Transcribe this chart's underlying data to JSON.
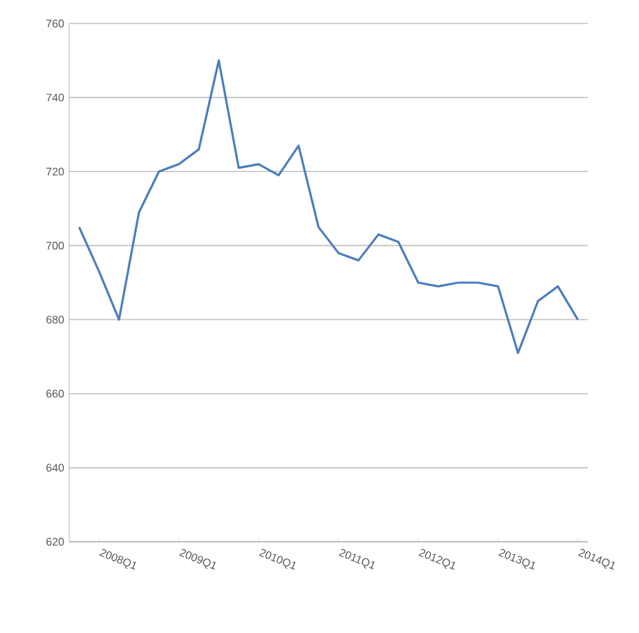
{
  "chart_data": {
    "type": "line",
    "categories": [
      null,
      "2008Q1",
      null,
      null,
      null,
      "2009Q1",
      null,
      null,
      null,
      "2010Q1",
      null,
      null,
      null,
      "2011Q1",
      null,
      null,
      null,
      "2012Q1",
      null,
      null,
      null,
      "2013Q1",
      null,
      null,
      null,
      "2014Q1"
    ],
    "series": [
      {
        "color": "#4a7ebb",
        "values": [
          705,
          693,
          680,
          709,
          720,
          722,
          726,
          750,
          721,
          722,
          719,
          727,
          705,
          698,
          696,
          703,
          701,
          690,
          689,
          690,
          690,
          689,
          671,
          685,
          689,
          680
        ]
      }
    ],
    "ylim": [
      620,
      760
    ],
    "yticks": [
      620,
      640,
      660,
      680,
      700,
      720,
      740,
      760
    ],
    "grid": "y",
    "marker": "none",
    "line_style": "solid"
  }
}
